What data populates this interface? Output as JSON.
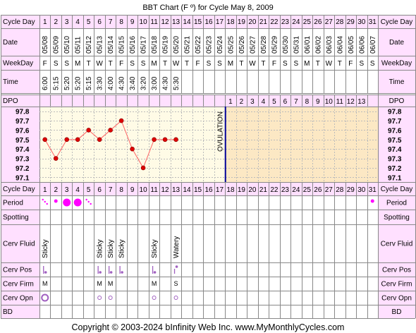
{
  "title": "BBT Chart (F º) for Cycle May 8, 2009",
  "footer": "Copyright © 2003-2024 bInfinity Web Inc.    www.MyMonthlyCycles.com",
  "row_labels": {
    "cycle_day": "Cycle Day",
    "date": "Date",
    "weekday": "WeekDay",
    "time": "Time",
    "dpo": "DPO",
    "period": "Period",
    "spotting": "Spotting",
    "cerv_fluid": "Cerv Fluid",
    "cerv_pos": "Cerv Pos",
    "cerv_firm": "Cerv Firm",
    "cerv_opn": "Cerv Opn",
    "bd": "BD"
  },
  "colors": {
    "label_bg": "#ffe0ff",
    "border": "#888888",
    "pre_ovulation_bg": "#fffbe6",
    "post_ovulation_bg": "#fce8c4",
    "line": "#ff6666",
    "point": "#dd0000",
    "ovulation_line": "#000099",
    "period": "#ff00ff",
    "cervix": "#a060c0"
  },
  "chart_data": {
    "type": "line",
    "title": "BBT Chart (F º) for Cycle May 8, 2009",
    "cycle_days": [
      1,
      2,
      3,
      4,
      5,
      6,
      7,
      8,
      9,
      10,
      11,
      12,
      13,
      14,
      15,
      16,
      17,
      18,
      19,
      20,
      21,
      22,
      23,
      24,
      25,
      26,
      27,
      28,
      29,
      30,
      31
    ],
    "dates": [
      "05/08",
      "05/09",
      "05/10",
      "05/11",
      "05/12",
      "05/13",
      "05/14",
      "05/15",
      "05/16",
      "05/17",
      "05/18",
      "05/19",
      "05/20",
      "05/21",
      "05/22",
      "05/23",
      "05/24",
      "05/25",
      "05/26",
      "05/27",
      "05/28",
      "05/29",
      "05/30",
      "05/31",
      "06/01",
      "06/02",
      "06/03",
      "06/04",
      "06/05",
      "06/06",
      "06/07"
    ],
    "weekdays": [
      "F",
      "S",
      "S",
      "M",
      "T",
      "W",
      "T",
      "F",
      "S",
      "S",
      "M",
      "T",
      "W",
      "T",
      "F",
      "S",
      "S",
      "M",
      "T",
      "W",
      "T",
      "F",
      "S",
      "S",
      "M",
      "T",
      "W",
      "T",
      "F",
      "S",
      "S"
    ],
    "times": [
      "6:00",
      "5:15",
      "5:20",
      "5:20",
      "5:15",
      "3:30",
      "4:00",
      "4:30",
      "3:40",
      "3:20",
      "3:00",
      "4:30",
      "5:30"
    ],
    "temperatures": [
      97.5,
      97.3,
      97.5,
      97.5,
      97.6,
      97.5,
      97.6,
      97.7,
      97.4,
      97.2,
      97.5,
      97.5,
      97.5
    ],
    "y_ticks": [
      97.8,
      97.7,
      97.6,
      97.5,
      97.4,
      97.3,
      97.2,
      97.1
    ],
    "ylim": [
      97.05,
      97.85
    ],
    "ovulation_day": 17,
    "ovulation_label": "OVULATION",
    "dpo": [
      1,
      2,
      3,
      4,
      5,
      6,
      7,
      8,
      9,
      10,
      11,
      12,
      13
    ],
    "period": [
      {
        "day": 1,
        "type": "spot"
      },
      {
        "day": 2,
        "type": "light"
      },
      {
        "day": 3,
        "type": "heavy"
      },
      {
        "day": 4,
        "type": "heavy"
      },
      {
        "day": 5,
        "type": "spot"
      },
      {
        "day": 31,
        "type": "light"
      }
    ],
    "cerv_fluid": [
      {
        "day": 1,
        "label": "Sticky"
      },
      {
        "day": 6,
        "label": "Sticky"
      },
      {
        "day": 7,
        "label": "Sticky"
      },
      {
        "day": 8,
        "label": "Sticky"
      },
      {
        "day": 11,
        "label": "Sticky"
      },
      {
        "day": 13,
        "label": "Watery"
      }
    ],
    "cerv_pos": [
      {
        "day": 1,
        "level": "low"
      },
      {
        "day": 6,
        "level": "low"
      },
      {
        "day": 7,
        "level": "low"
      },
      {
        "day": 8,
        "level": "low"
      },
      {
        "day": 11,
        "level": "low"
      },
      {
        "day": 13,
        "level": "high"
      }
    ],
    "cerv_firm": [
      {
        "day": 1,
        "label": "M"
      },
      {
        "day": 6,
        "label": "M"
      },
      {
        "day": 7,
        "label": "M"
      },
      {
        "day": 11,
        "label": "M"
      },
      {
        "day": 13,
        "label": "S"
      }
    ],
    "cerv_opn": [
      {
        "day": 1,
        "size": "large"
      },
      {
        "day": 6,
        "size": "small"
      },
      {
        "day": 7,
        "size": "small"
      },
      {
        "day": 11,
        "size": "small"
      },
      {
        "day": 13,
        "size": "small"
      }
    ]
  }
}
